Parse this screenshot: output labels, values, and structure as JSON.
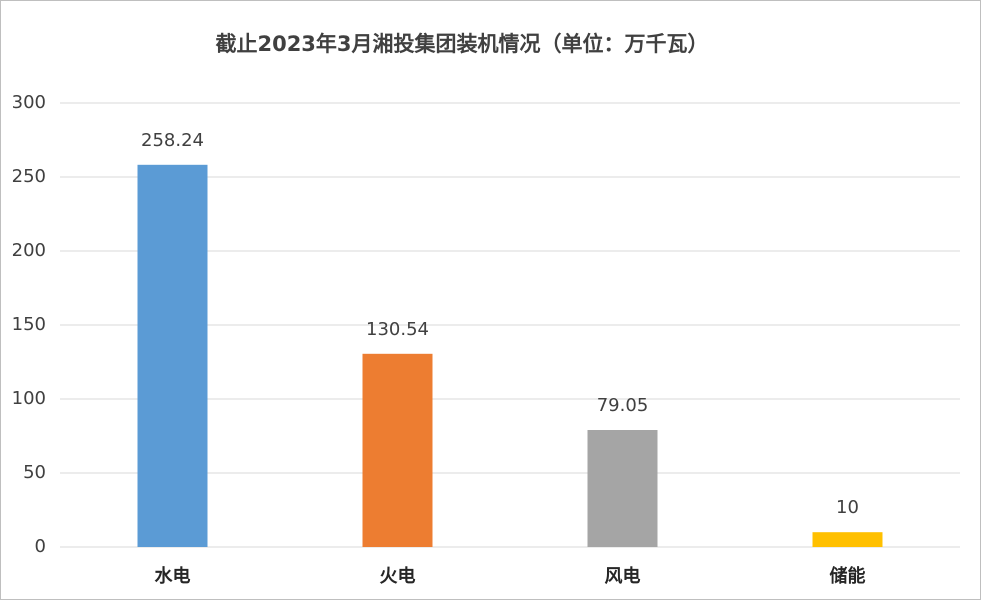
{
  "chart_data": {
    "type": "bar",
    "title": "截止2023年3月湘投集团装机情况（单位：万千瓦）",
    "categories": [
      "水电",
      "火电",
      "风电",
      "储能"
    ],
    "values": [
      258.24,
      130.54,
      79.05,
      10
    ],
    "colors": [
      "#5b9bd5",
      "#ed7d31",
      "#a5a5a5",
      "#ffc000"
    ],
    "ylim": [
      0,
      300
    ],
    "yticks": [
      0,
      50,
      100,
      150,
      200,
      250,
      300
    ],
    "grid": true
  }
}
